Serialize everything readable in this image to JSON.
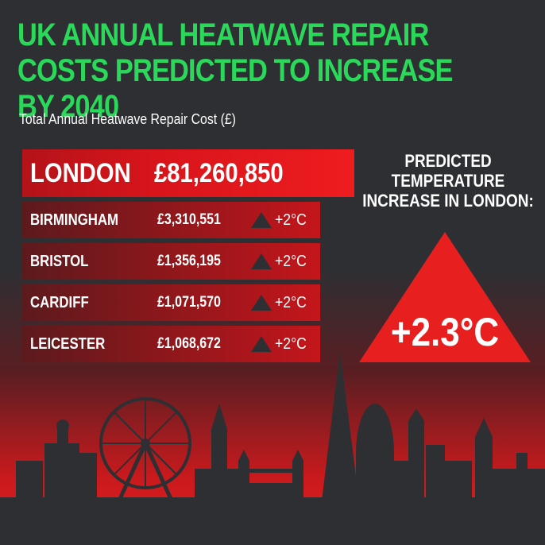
{
  "title": "UK ANNUAL HEATWAVE REPAIR COSTS PREDICTED TO INCREASE BY 2040",
  "subtitle": "Total Annual Heatwave Repair Cost (£)",
  "colors": {
    "title_green": "#2bd95a",
    "accent_red": "#e81f1f",
    "background": "#2e2f33"
  },
  "chart_data": {
    "type": "table",
    "title": "UK ANNUAL HEATWAVE REPAIR COSTS PREDICTED TO INCREASE BY 2040",
    "subtitle": "Total Annual Heatwave Repair Cost (£)",
    "rows": [
      {
        "city": "LONDON",
        "cost_label": "£81,260,850",
        "cost": 81260850
      },
      {
        "city": "BIRMINGHAM",
        "cost_label": "£3,310,551",
        "cost": 3310551,
        "increase": "+2°C"
      },
      {
        "city": "BRISTOL",
        "cost_label": "£1,356,195",
        "cost": 1356195,
        "increase": "+2°C"
      },
      {
        "city": "CARDIFF",
        "cost_label": "£1,071,570",
        "cost": 1071570,
        "increase": "+2°C"
      },
      {
        "city": "LEICESTER",
        "cost_label": "£1,068,672",
        "cost": 1068672,
        "increase": "+2°C"
      }
    ]
  },
  "prediction": {
    "label": "PREDICTED TEMPERATURE INCREASE IN LONDON:",
    "value": "+2.3°C"
  },
  "icons": {
    "increase": "triangle-up-icon",
    "skyline": "london-skyline-illustration"
  }
}
